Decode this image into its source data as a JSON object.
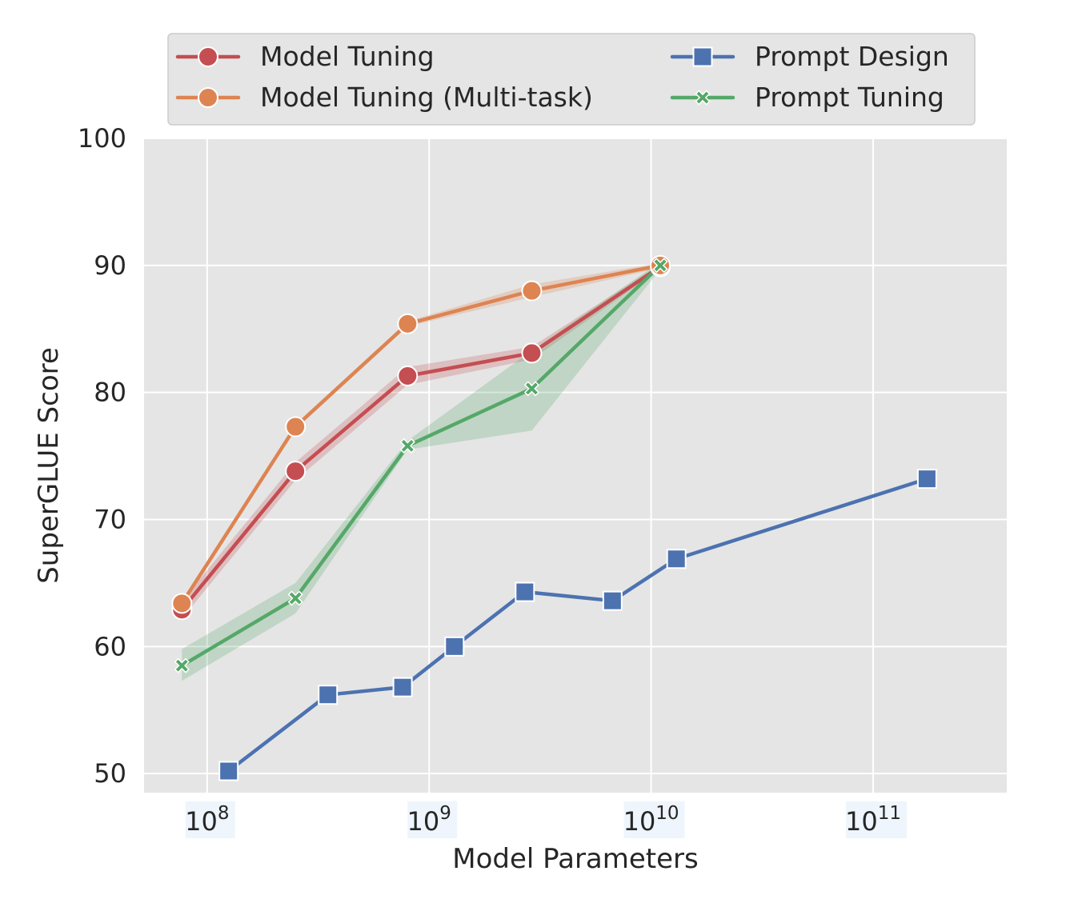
{
  "chart_data": {
    "type": "line",
    "xlabel": "Model Parameters",
    "ylabel": "SuperGLUE Score",
    "xscale": "log",
    "xlim": [
      52000000.0,
      400000000000.0
    ],
    "ylim": [
      48.5,
      100
    ],
    "x_ticks": [
      {
        "value": 100000000.0,
        "base": "10",
        "exp": "8"
      },
      {
        "value": 1000000000.0,
        "base": "10",
        "exp": "9"
      },
      {
        "value": 10000000000.0,
        "base": "10",
        "exp": "10"
      },
      {
        "value": 100000000000.0,
        "base": "10",
        "exp": "11"
      }
    ],
    "y_ticks": [
      50,
      60,
      70,
      80,
      90,
      100
    ],
    "grid": true,
    "legend_position": "top",
    "series": [
      {
        "name": "Model Tuning",
        "color": "#c44e52",
        "marker": "circle",
        "points": [
          {
            "x": 77000000.0,
            "y": 62.9,
            "lo": 62.2,
            "hi": 63.6
          },
          {
            "x": 250000000.0,
            "y": 73.8,
            "lo": 73.1,
            "hi": 74.5
          },
          {
            "x": 800000000.0,
            "y": 81.3,
            "lo": 80.6,
            "hi": 82.0
          },
          {
            "x": 2900000000.0,
            "y": 83.1,
            "lo": 82.6,
            "hi": 83.6
          },
          {
            "x": 11000000000.0,
            "y": 89.9,
            "lo": 89.7,
            "hi": 90.1
          }
        ]
      },
      {
        "name": "Model Tuning (Multi-task)",
        "color": "#dd8452",
        "marker": "circle",
        "points": [
          {
            "x": 77000000.0,
            "y": 63.4,
            "lo": 63.2,
            "hi": 63.6
          },
          {
            "x": 250000000.0,
            "y": 77.3,
            "lo": 77.1,
            "hi": 77.5
          },
          {
            "x": 800000000.0,
            "y": 85.4,
            "lo": 85.2,
            "hi": 85.6
          },
          {
            "x": 2900000000.0,
            "y": 88.0,
            "lo": 87.5,
            "hi": 88.5
          },
          {
            "x": 11000000000.0,
            "y": 90.0,
            "lo": 89.8,
            "hi": 90.2
          }
        ]
      },
      {
        "name": "Prompt Design",
        "color": "#4c72b0",
        "marker": "square",
        "points": [
          {
            "x": 125000000.0,
            "y": 50.2
          },
          {
            "x": 350000000.0,
            "y": 56.2
          },
          {
            "x": 760000000.0,
            "y": 56.8
          },
          {
            "x": 1300000000.0,
            "y": 60.0
          },
          {
            "x": 2700000000.0,
            "y": 64.3
          },
          {
            "x": 6700000000.0,
            "y": 63.6
          },
          {
            "x": 13000000000.0,
            "y": 66.9
          },
          {
            "x": 175000000000.0,
            "y": 73.2
          }
        ]
      },
      {
        "name": "Prompt Tuning",
        "color": "#55a868",
        "marker": "x",
        "points": [
          {
            "x": 77000000.0,
            "y": 58.5,
            "lo": 57.3,
            "hi": 59.8
          },
          {
            "x": 250000000.0,
            "y": 63.8,
            "lo": 62.6,
            "hi": 65.0
          },
          {
            "x": 800000000.0,
            "y": 75.8,
            "lo": 75.5,
            "hi": 76.2
          },
          {
            "x": 2900000000.0,
            "y": 80.3,
            "lo": 77.0,
            "hi": 83.3
          },
          {
            "x": 11000000000.0,
            "y": 90.0,
            "lo": 89.7,
            "hi": 90.3
          }
        ]
      }
    ]
  }
}
